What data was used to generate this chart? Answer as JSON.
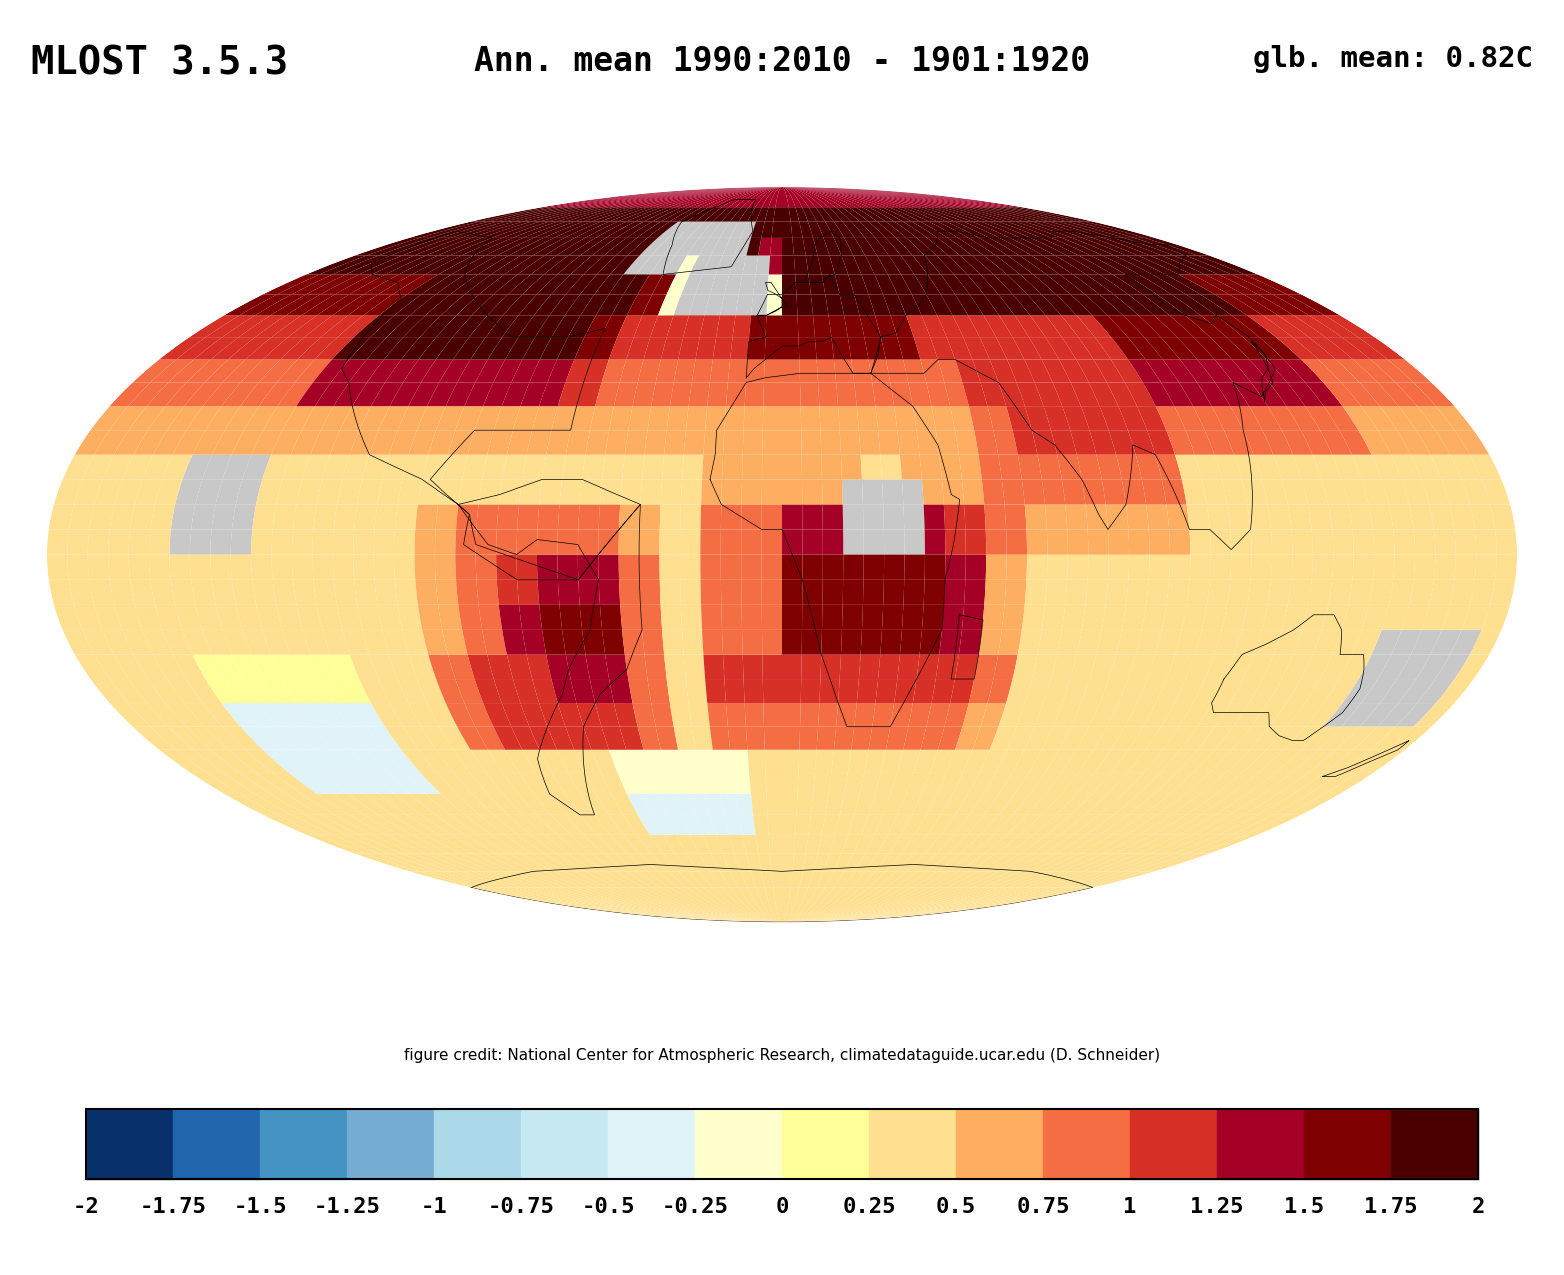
{
  "title_left": "MLOST 3.5.3",
  "title_center": "Ann. mean 1990:2010 - 1901:1920",
  "title_right": "glb. mean: 0.82C",
  "credit": "figure credit: National Center for Atmospheric Research, climatedataguide.ucar.edu (D. Schneider)",
  "colorbar_ticks": [
    -2,
    -1.75,
    -1.5,
    -1.25,
    -1,
    -0.75,
    -0.5,
    -0.25,
    0,
    0.25,
    0.5,
    0.75,
    1,
    1.25,
    1.5,
    1.75,
    2
  ],
  "colorbar_tick_labels": [
    "-2",
    "-1.75",
    "-1.5",
    "-1.25",
    "-1",
    "-0.75",
    "-0.5",
    "-0.25",
    "0",
    "0.25",
    "0.5",
    "0.75",
    "1",
    "1.25",
    "1.5",
    "1.75",
    "2"
  ],
  "cmap_colors": [
    "#08306b",
    "#2166ac",
    "#4393c3",
    "#74add1",
    "#abd9e9",
    "#c6e8f0",
    "#e0f3f8",
    "#ffffcc",
    "#ffff99",
    "#fee090",
    "#fdae61",
    "#f46d43",
    "#d73027",
    "#a50026",
    "#7f0000",
    "#4a0000"
  ],
  "vmin": -2.0,
  "vmax": 2.0,
  "background_color": "#ffffff",
  "nodata_color": "#c8c8c8",
  "coast_color": "#000000",
  "title_fontsize": 28,
  "credit_fontsize": 11,
  "colorbar_fontsize": 16,
  "figsize": [
    15.64,
    12.75
  ],
  "dpi": 100
}
